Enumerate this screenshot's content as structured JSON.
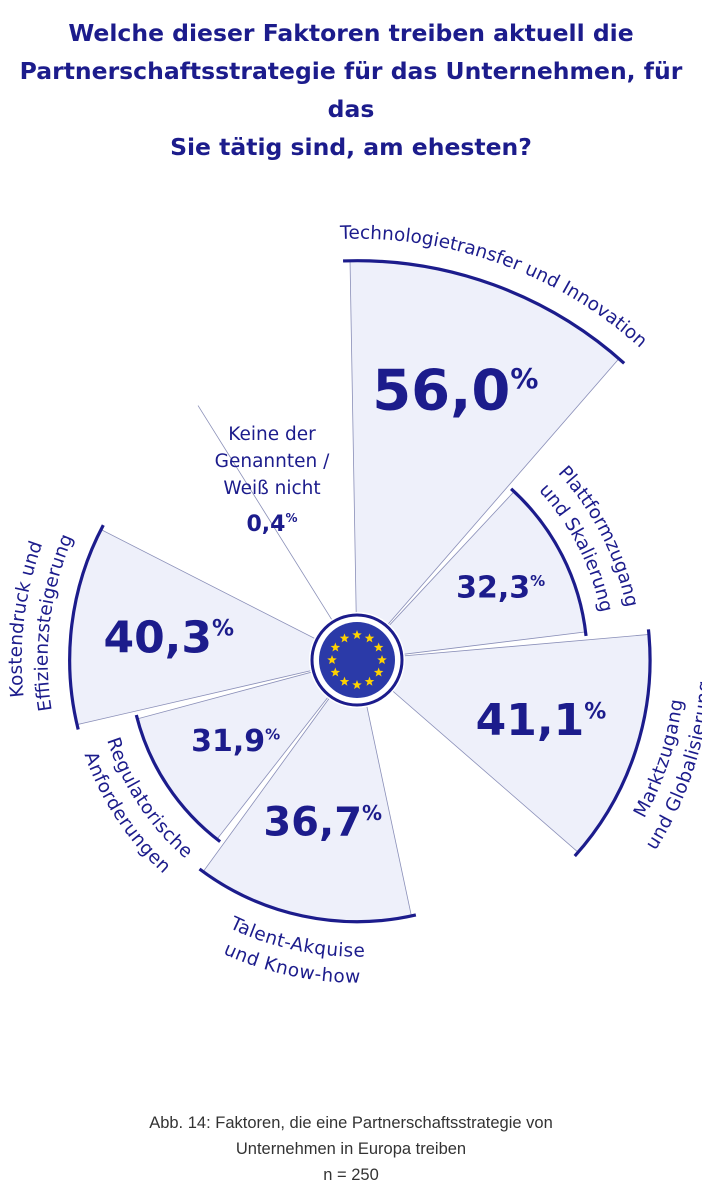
{
  "title_lines": [
    "Welche dieser Faktoren treiben aktuell die",
    "Partnerschaftsstrategie für das Unternehmen, für das",
    "Sie tätig sind, am ehesten?"
  ],
  "caption": {
    "line1": "Abb. 14: Faktoren, die eine Partnerschaftsstrategie von",
    "line2": "Unternehmen in Europa treiben",
    "n": "n = 250"
  },
  "colors": {
    "accent": "#1c1c8c",
    "segment_fill": "#eef0fa",
    "eu_blue": "#2b3aa8",
    "eu_star": "#ffd200"
  },
  "chart_data": {
    "type": "radial-bar",
    "unit": "%",
    "categories": [
      "Technologietransfer und Innovation",
      "Plattformzugang und Skalierung",
      "Marktzugang und Globalisierung",
      "Talent-Akquise und Know-how",
      "Regulatorische Anforderungen",
      "Kostendruck und Effizienzsteigerung",
      "Keine der Genannten / Weiß nicht"
    ],
    "values": [
      56.0,
      32.3,
      41.1,
      36.7,
      31.9,
      40.3,
      0.4
    ],
    "value_labels": [
      "56,0",
      "32,3",
      "41,1",
      "36,7",
      "31,9",
      "40,3",
      "0,4"
    ],
    "category_lines": [
      [
        "Technologietransfer und Innovation"
      ],
      [
        "Plattformzugang",
        "und Skalierung"
      ],
      [
        "Marktzugang",
        "und Globalisierung"
      ],
      [
        "Talent-Akquise",
        "und Know-how"
      ],
      [
        "Regulatorische",
        "Anforderungen"
      ],
      [
        "Kostendruck und",
        "Effizienzsteigerung"
      ],
      [
        "Keine der",
        "Genannten /",
        "Weiß nicht"
      ]
    ],
    "center_icon": "eu-flag-icon"
  }
}
